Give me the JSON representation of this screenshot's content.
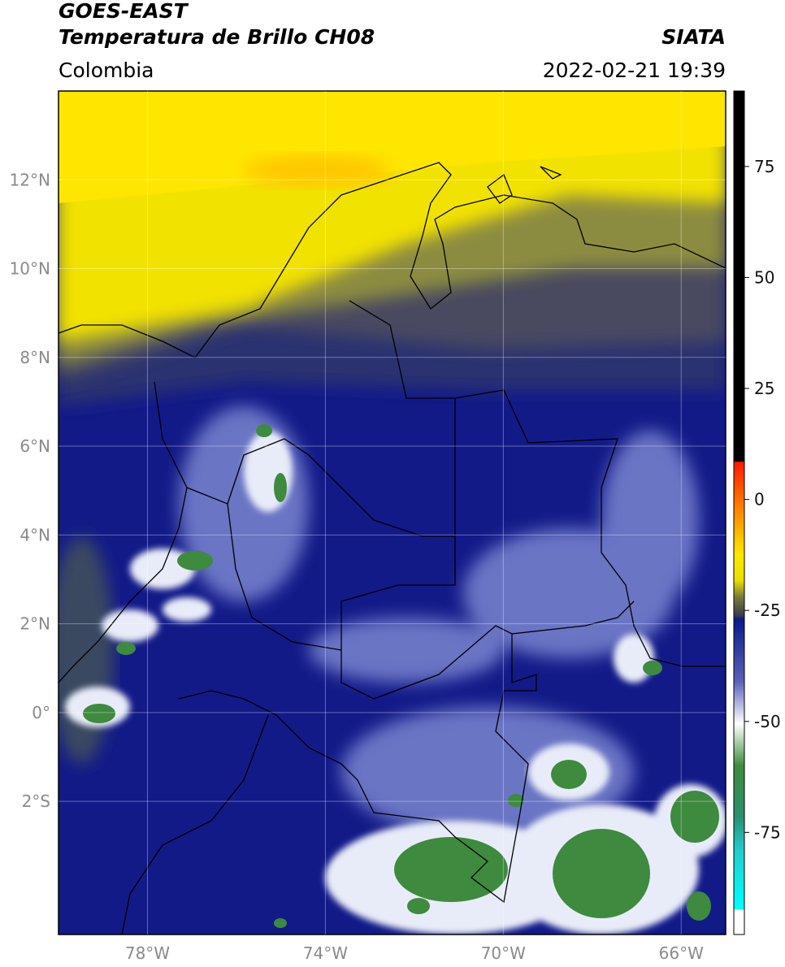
{
  "header": {
    "title": "GOES-EAST",
    "product": "Temperatura de Brillo CH08",
    "region": "Colombia",
    "source": "SIATA",
    "datetime": "2022-02-21 19:39"
  },
  "map": {
    "lon_range": [
      -80,
      -65
    ],
    "lat_range": [
      -5,
      14
    ],
    "lat_ticks": [
      {
        "value": 12,
        "label": "12°N"
      },
      {
        "value": 10,
        "label": "10°N"
      },
      {
        "value": 8,
        "label": "8°N"
      },
      {
        "value": 6,
        "label": "6°N"
      },
      {
        "value": 4,
        "label": "4°N"
      },
      {
        "value": 2,
        "label": "2°N"
      },
      {
        "value": 0,
        "label": "0°"
      },
      {
        "value": -2,
        "label": "2°S"
      }
    ],
    "lon_ticks": [
      {
        "value": -78,
        "label": "78°W"
      },
      {
        "value": -74,
        "label": "74°W"
      },
      {
        "value": -70,
        "label": "70°W"
      },
      {
        "value": -66,
        "label": "66°W"
      }
    ]
  },
  "colorbar": {
    "range": [
      -98,
      92
    ],
    "ticks": [
      75,
      50,
      25,
      0,
      -25,
      -50,
      -75
    ]
  }
}
